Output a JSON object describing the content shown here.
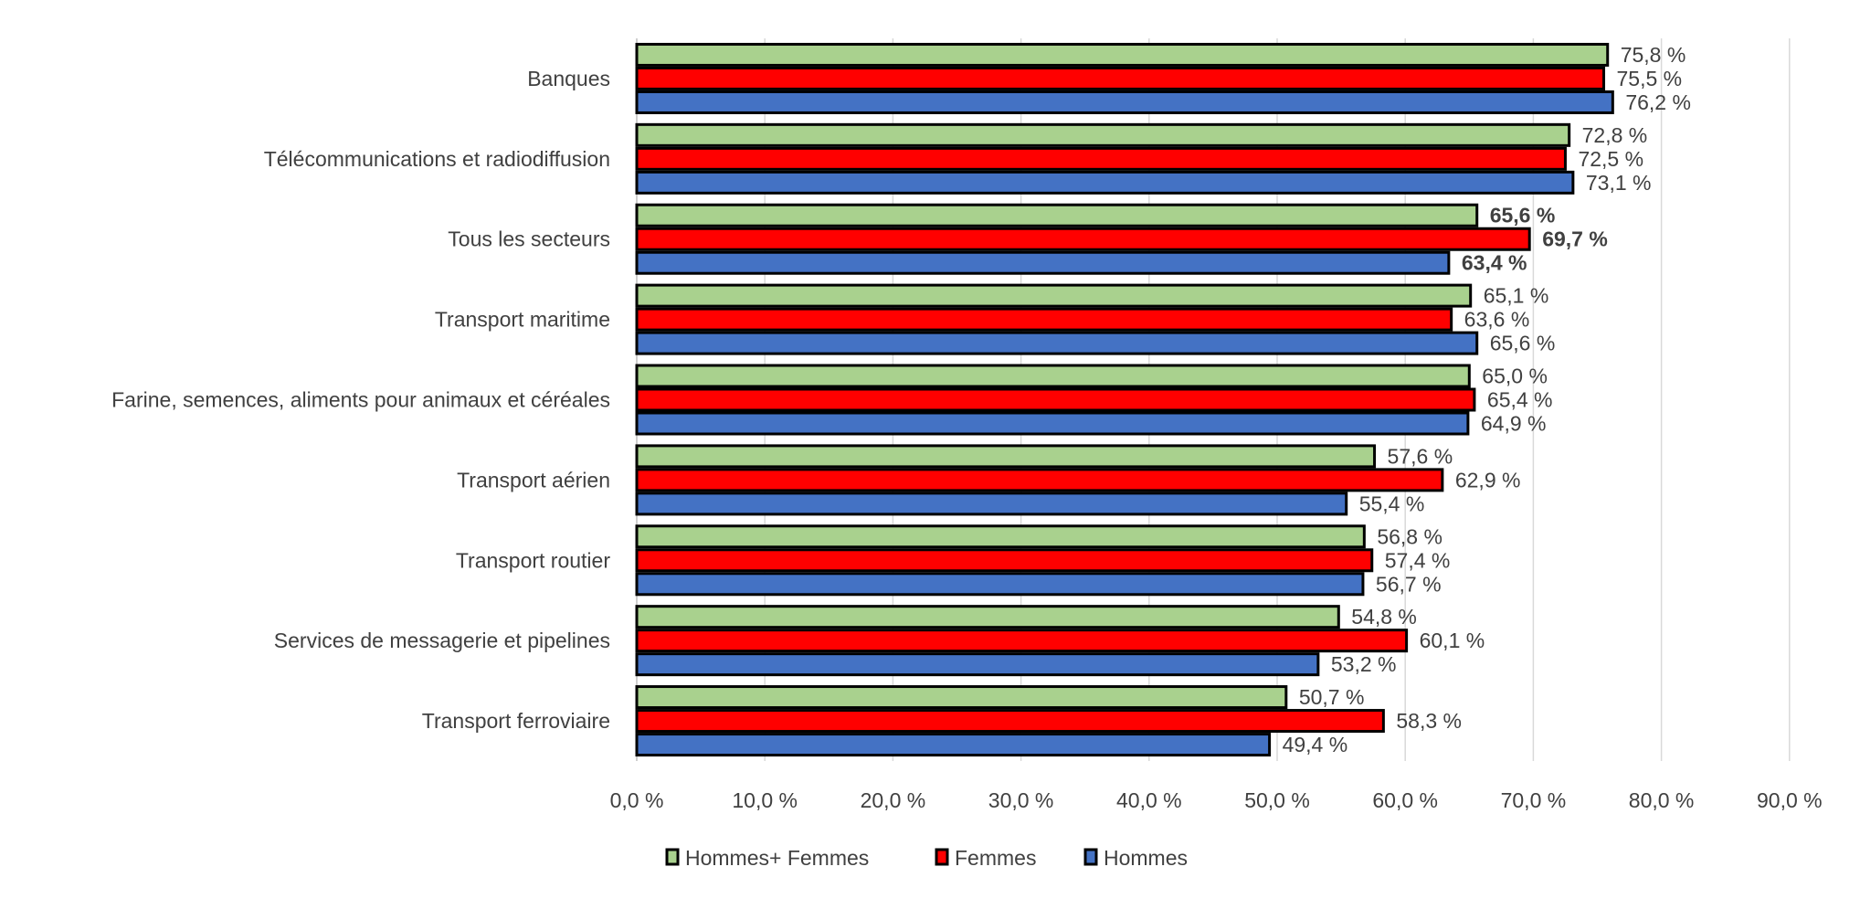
{
  "chart_data": {
    "type": "bar",
    "orientation": "horizontal",
    "categories": [
      "Banques",
      "Télécommunications et radiodiffusion",
      "Tous les secteurs",
      "Transport maritime",
      "Farine, semences, aliments pour animaux et céréales",
      "Transport aérien",
      "Transport routier",
      "Services de messagerie et pipelines",
      "Transport ferroviaire"
    ],
    "bold_category": "Tous les secteurs",
    "series": [
      {
        "name": "Hommes+ Femmes",
        "color": "#A9D18E",
        "values": [
          75.8,
          72.8,
          65.6,
          65.1,
          65.0,
          57.6,
          56.8,
          54.8,
          50.7
        ]
      },
      {
        "name": "Femmes",
        "color": "#FF0000",
        "values": [
          75.5,
          72.5,
          69.7,
          63.6,
          65.4,
          62.9,
          57.4,
          60.1,
          58.3
        ]
      },
      {
        "name": "Hommes",
        "color": "#4472C4",
        "values": [
          76.2,
          73.1,
          63.4,
          65.6,
          64.9,
          55.4,
          56.7,
          53.2,
          49.4
        ]
      }
    ],
    "xlim": [
      0,
      90
    ],
    "x_ticks": [
      "0,0 %",
      "10,0 %",
      "20,0 %",
      "30,0 %",
      "40,0 %",
      "50,0 %",
      "60,0 %",
      "70,0 %",
      "80,0 %",
      "90,0 %"
    ],
    "data_labels": [
      [
        "75,8 %",
        "72,8 %",
        "65,6 %",
        "65,1 %",
        "65,0 %",
        "57,6 %",
        "56,8 %",
        "54,8 %",
        "50,7 %"
      ],
      [
        "75,5 %",
        "72,5 %",
        "69,7 %",
        "63,6 %",
        "65,4 %",
        "62,9 %",
        "57,4 %",
        "60,1 %",
        "58,3 %"
      ],
      [
        "76,2 %",
        "73,1 %",
        "63,4 %",
        "65,6 %",
        "64,9 %",
        "55,4 %",
        "56,7 %",
        "53,2 %",
        "49,4 %"
      ]
    ],
    "grid": true,
    "legend_position": "bottom",
    "title": "",
    "xlabel": "",
    "ylabel": ""
  }
}
